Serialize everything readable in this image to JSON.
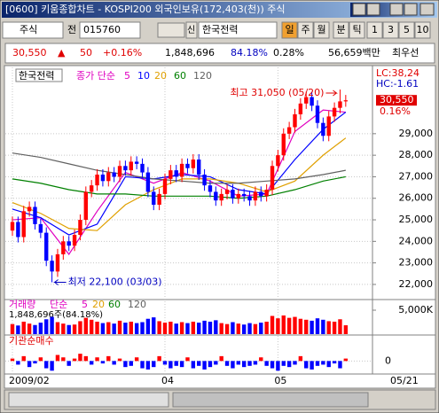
{
  "window": {
    "title": "[0600] 키움종합차트 - KOSPI200 외국인보유(172,403(천)) 주식"
  },
  "toolbar": {
    "market": "주식",
    "prev": "전",
    "code": "015760",
    "new": "신",
    "name": "한국전력",
    "periods": [
      "일",
      "주",
      "월",
      "분",
      "틱",
      "1",
      "3",
      "5",
      "10"
    ]
  },
  "info": {
    "price": "30,550",
    "arrow": "▲",
    "change": "50",
    "rate": "+0.16%",
    "volume": "1,848,696",
    "vol_rate": "84.18%",
    "turnover": "0.28%",
    "amount": "56,659백만",
    "best": "최우선"
  },
  "chart_data": {
    "type": "candlestick",
    "name": "한국전력",
    "legend_prefix": "종가 단순",
    "lc": "LC:38,24",
    "hc": "HC:-1.61",
    "last_label": "30,550",
    "last_rate": "0.16%",
    "annotations": {
      "high": "최고 31,050 (05/20)",
      "low": "최저 22,100 (03/03)"
    },
    "xticks": [
      {
        "value": 0,
        "label": "2009/02"
      },
      {
        "value": 27,
        "label": "04"
      },
      {
        "value": 47,
        "label": "05"
      }
    ],
    "last_date": "05/21",
    "ylim": [
      21380,
      32080
    ],
    "yticks": [
      {
        "value": 29000,
        "label": "29,000"
      },
      {
        "value": 28000,
        "label": "28,000"
      },
      {
        "value": 27000,
        "label": "27,000"
      },
      {
        "value": 26000,
        "label": "26,000"
      },
      {
        "value": 25000,
        "label": "25,000"
      },
      {
        "value": 24000,
        "label": "24,000"
      },
      {
        "value": 23000,
        "label": "23,000"
      },
      {
        "value": 22000,
        "label": "22,000"
      }
    ],
    "up_color": "#ff0000",
    "down_color": "#0000ff",
    "open": [
      24500,
      24900,
      24200,
      25400,
      25600,
      24800,
      24400,
      23100,
      22600,
      23400,
      24000,
      23800,
      24300,
      25000,
      26300,
      26600,
      27100,
      26800,
      27200,
      27000,
      27500,
      27300,
      27700,
      27600,
      27200,
      26300,
      25700,
      26200,
      26900,
      27300,
      27000,
      27600,
      27400,
      27800,
      27100,
      26600,
      26300,
      25900,
      26200,
      26400,
      26000,
      26200,
      26100,
      25900,
      26300,
      26100,
      26400,
      27500,
      28000,
      29000,
      29300,
      29900,
      30400,
      30700,
      30300,
      29500,
      28900,
      29800,
      30200,
      30500
    ],
    "close": [
      24900,
      24200,
      25400,
      25600,
      24800,
      24400,
      23100,
      22600,
      23400,
      24000,
      23800,
      24300,
      25000,
      26300,
      26600,
      27100,
      26800,
      27200,
      27000,
      27500,
      27300,
      27700,
      27600,
      27200,
      26300,
      25700,
      26200,
      26900,
      27300,
      27000,
      27600,
      27400,
      27800,
      27100,
      26600,
      26300,
      25900,
      26200,
      26400,
      26000,
      26200,
      26100,
      25900,
      26300,
      26100,
      26400,
      27500,
      28000,
      29000,
      29300,
      29900,
      30400,
      30700,
      30300,
      29500,
      28900,
      29800,
      30200,
      30500,
      30550
    ],
    "high": [
      25150,
      25150,
      25650,
      25850,
      25850,
      25050,
      24650,
      23350,
      23650,
      24250,
      24250,
      24550,
      25250,
      26550,
      26850,
      27350,
      27350,
      27450,
      27450,
      27750,
      27750,
      27950,
      27950,
      27850,
      27450,
      26550,
      26450,
      27150,
      27550,
      27550,
      27850,
      27850,
      28050,
      28050,
      27350,
      26850,
      26550,
      26450,
      26650,
      26650,
      26450,
      26450,
      26350,
      26550,
      26550,
      26650,
      27750,
      28250,
      29250,
      29550,
      30150,
      30650,
      30950,
      30950,
      30550,
      29750,
      30050,
      30450,
      31050,
      30800
    ],
    "low": [
      24250,
      23950,
      23950,
      25150,
      24550,
      24150,
      22850,
      22100,
      22350,
      23150,
      23550,
      23550,
      24050,
      24750,
      26050,
      26350,
      26550,
      26550,
      26750,
      26750,
      27050,
      27050,
      27350,
      26950,
      26050,
      25450,
      25450,
      25950,
      26650,
      26750,
      26750,
      27150,
      27150,
      26850,
      26350,
      26050,
      25650,
      25650,
      25950,
      25750,
      25750,
      25850,
      25650,
      25650,
      25850,
      25850,
      26150,
      27250,
      27750,
      28750,
      29050,
      29650,
      30150,
      30050,
      29250,
      28650,
      28650,
      29550,
      29950,
      30250
    ],
    "ma_x": [
      0,
      5,
      10,
      15,
      20,
      25,
      30,
      35,
      40,
      45,
      50,
      55,
      59
    ],
    "series": [
      {
        "name": "5",
        "color": "#e000c0",
        "values": [
          25000,
          25100,
          23400,
          25400,
          27200,
          26700,
          27200,
          26800,
          26100,
          26200,
          29100,
          30100,
          30000
        ]
      },
      {
        "name": "10",
        "color": "#0000ff",
        "values": [
          25500,
          25100,
          24300,
          24800,
          27000,
          26900,
          27100,
          27000,
          26400,
          26200,
          27800,
          29200,
          30000
        ]
      },
      {
        "name": "20",
        "color": "#e0a000",
        "values": [
          25800,
          25300,
          24600,
          24500,
          25700,
          26400,
          26900,
          26900,
          26700,
          26300,
          26800,
          28000,
          28800
        ]
      },
      {
        "name": "60",
        "color": "#008000",
        "values": [
          26900,
          26700,
          26400,
          26200,
          26200,
          26100,
          26100,
          26100,
          26000,
          26100,
          26400,
          26800,
          27000
        ]
      },
      {
        "name": "120",
        "color": "#606060",
        "values": [
          28100,
          27900,
          27600,
          27300,
          27100,
          26900,
          26800,
          26700,
          26700,
          26800,
          26900,
          27100,
          27300
        ]
      }
    ],
    "volume": {
      "title": "거래량",
      "legend_prefix": "단순",
      "legend": [
        "5",
        "20",
        "60",
        "120"
      ],
      "label": "1,848,696주(84.18%)",
      "ylim": [
        0,
        6850
      ],
      "yticks": [
        {
          "value": 5000,
          "label": "5,000K"
        }
      ],
      "values": [
        2100,
        1800,
        2600,
        2200,
        1900,
        2400,
        3100,
        3600,
        2500,
        2200,
        1900,
        2000,
        2700,
        3400,
        3000,
        2600,
        2300,
        2500,
        2200,
        2800,
        2400,
        2600,
        2300,
        2500,
        3200,
        3500,
        2700,
        2400,
        2600,
        2200,
        2500,
        2300,
        2600,
        2400,
        2800,
        2600,
        2900,
        2300,
        2100,
        2500,
        2200,
        2000,
        2300,
        2100,
        2400,
        2600,
        3800,
        3300,
        3900,
        3400,
        3600,
        3200,
        3000,
        2800,
        3300,
        3000,
        2700,
        2600,
        3100,
        1848.696
      ]
    },
    "institution": {
      "title": "기관순매수",
      "ylim": [
        -100,
        200
      ],
      "yticks": [
        0
      ],
      "values": [
        20,
        -30,
        40,
        -50,
        -20,
        30,
        -60,
        -80,
        50,
        30,
        -40,
        20,
        60,
        40,
        -30,
        30,
        -20,
        40,
        -30,
        20,
        -50,
        -40,
        30,
        -60,
        -70,
        -50,
        40,
        -30,
        -60,
        -40,
        -50,
        30,
        -60,
        -40,
        -70,
        -50,
        -30,
        40,
        -40,
        -60,
        -30,
        -50,
        -40,
        -30,
        30,
        -40,
        -60,
        -80,
        -40,
        -50,
        -30,
        40,
        -60,
        -70,
        -40,
        -30,
        -50,
        -20,
        -60,
        20
      ]
    }
  }
}
